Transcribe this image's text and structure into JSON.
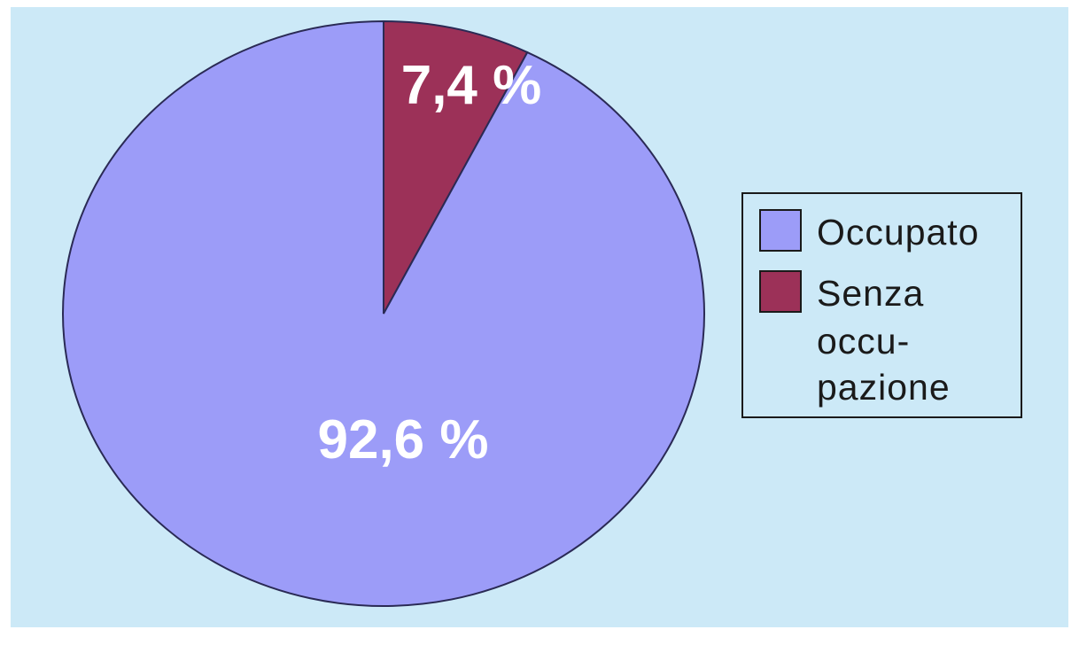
{
  "colors": {
    "background": "#cce9f7",
    "occupato": "#9c9cf8",
    "senza_occupazione": "#9c3158",
    "label": "#ffffff",
    "outline": "#2a2a55"
  },
  "chart_data": {
    "type": "pie",
    "categories": [
      "Occupato",
      "Senza occupazione"
    ],
    "values": [
      92.6,
      7.4
    ],
    "data_labels": [
      "92,6 %",
      "7,4 %"
    ],
    "legend": {
      "placement": "right",
      "entries": [
        {
          "lines": [
            "Occupato"
          ]
        },
        {
          "lines": [
            "Senza",
            "occu-",
            "pazione"
          ]
        }
      ]
    },
    "start": "top",
    "direction": "clockwise",
    "first_slice": "Senza occupazione"
  }
}
